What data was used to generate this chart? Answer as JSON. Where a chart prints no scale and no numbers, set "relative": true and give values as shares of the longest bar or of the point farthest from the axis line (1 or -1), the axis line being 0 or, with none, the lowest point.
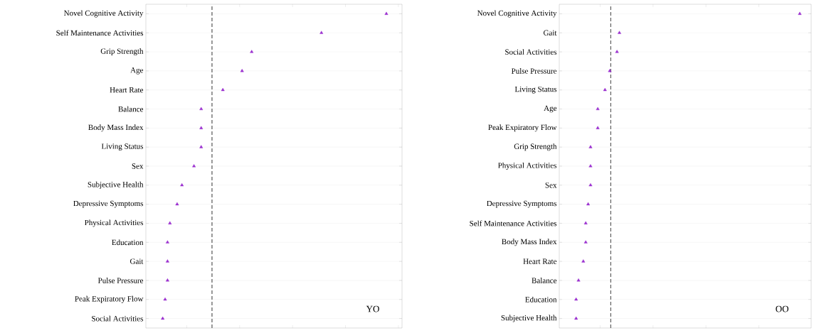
{
  "chart_data": [
    {
      "type": "scatter",
      "relative": true,
      "orientation": "horizontal",
      "marker": "triangle",
      "grid": "y",
      "categories": [
        "Novel Cognitive Activity",
        "Self Maintenance Activities",
        "Grip Strength",
        "Age",
        "Heart Rate",
        "Balance",
        "Body Mass Index",
        "Living Status",
        "Sex",
        "Subjective Health",
        "Depressive Symptoms",
        "Physical Activities",
        "Education",
        "Gait",
        "Pulse Pressure",
        "Peak Expiratory Flow",
        "Social Activities"
      ],
      "series": [
        {
          "color": "#9b30d0",
          "values": [
            1.0,
            0.73,
            0.44,
            0.4,
            0.32,
            0.23,
            0.23,
            0.23,
            0.2,
            0.15,
            0.13,
            0.1,
            0.09,
            0.09,
            0.09,
            0.08,
            0.07
          ]
        }
      ],
      "ref_lines": [
        {
          "axis": "x",
          "value": 0.275,
          "color": "#555555",
          "line_style": "dashed"
        }
      ],
      "annotations": [
        "YO"
      ]
    },
    {
      "type": "scatter",
      "relative": true,
      "orientation": "horizontal",
      "marker": "triangle",
      "grid": "y",
      "categories": [
        "Novel Cognitive Activity",
        "Gait",
        "Social Activities",
        "Pulse Pressure",
        "Living Status",
        "Age",
        "Peak Expiratory Flow",
        "Grip Strength",
        "Physical Activities",
        "Sex",
        "Depressive Symptoms",
        "Self Maintenance Activities",
        "Body Mass Index",
        "Heart Rate",
        "Balance",
        "Education",
        "Subjective Health"
      ],
      "series": [
        {
          "color": "#9b30d0",
          "values": [
            1.0,
            0.25,
            0.24,
            0.21,
            0.19,
            0.16,
            0.16,
            0.13,
            0.13,
            0.13,
            0.12,
            0.11,
            0.11,
            0.1,
            0.08,
            0.07,
            0.07
          ]
        }
      ],
      "ref_lines": [
        {
          "axis": "x",
          "value": 0.214,
          "color": "#555555",
          "line_style": "dashed"
        }
      ],
      "annotations": [
        "OO"
      ]
    }
  ]
}
